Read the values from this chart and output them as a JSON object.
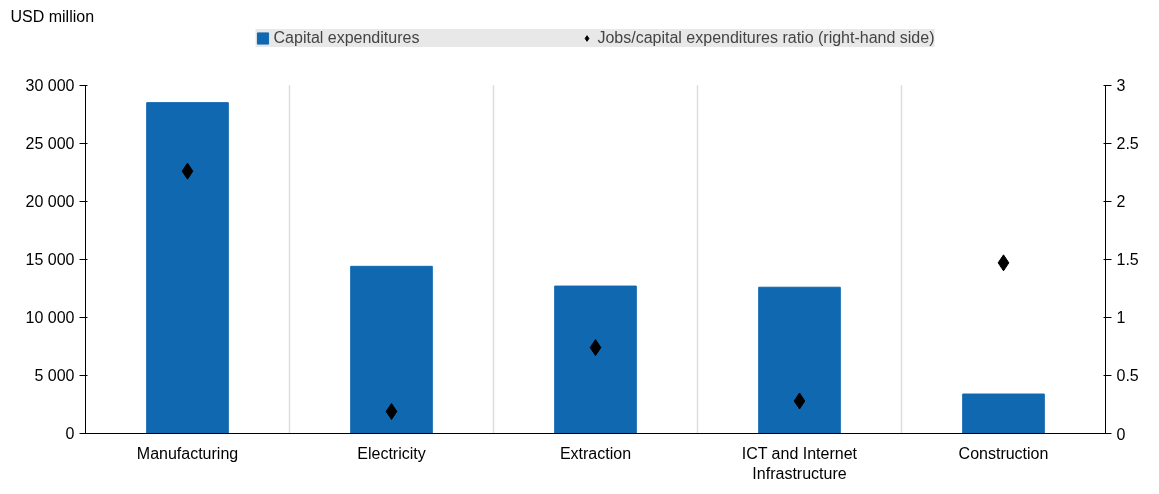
{
  "chart_data": {
    "type": "bar",
    "ylabel": "USD million",
    "categories": [
      "Manufacturing",
      "Electricity",
      "Extraction",
      "ICT and Internet Infrastructure",
      "Construction"
    ],
    "series": [
      {
        "name": "Capital expenditures",
        "color": "#0f68b0",
        "values": [
          28500,
          14400,
          12700,
          12600,
          3400
        ]
      },
      {
        "name": "Jobs/capital expenditures ratio (right-hand side)",
        "type": "scatter",
        "axis": "y2",
        "marker": "diamond",
        "color": "#000000",
        "values": [
          2.26,
          0.19,
          0.74,
          0.28,
          1.47
        ]
      }
    ],
    "ylim": [
      0,
      30000
    ],
    "yticks": [
      0,
      {
        "value": 5000,
        "label": "5 000"
      },
      {
        "value": 10000,
        "label": "10 000"
      },
      {
        "value": 15000,
        "label": "15 000"
      },
      {
        "value": 20000,
        "label": "20 000"
      },
      {
        "value": 25000,
        "label": "25 000"
      },
      {
        "value": 30000,
        "label": "30 000"
      }
    ],
    "y2lim": [
      0,
      3
    ],
    "y2ticks": [
      0,
      0.5,
      1,
      1.5,
      2,
      2.5,
      3
    ],
    "grid": "x",
    "legend": "top"
  }
}
